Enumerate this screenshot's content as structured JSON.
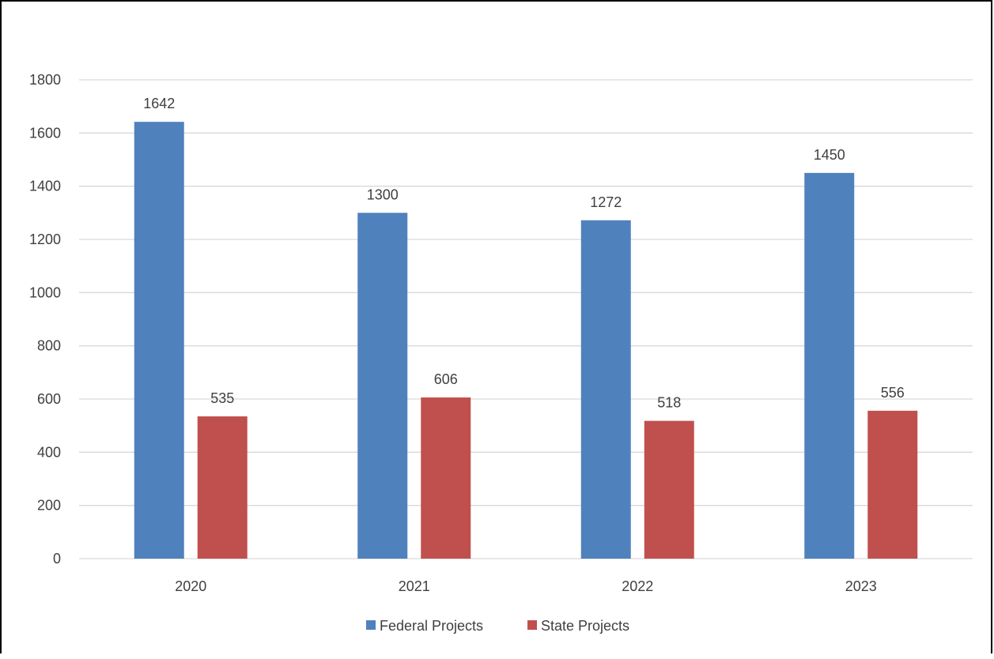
{
  "chart_data": {
    "type": "bar",
    "title": "",
    "xlabel": "",
    "ylabel": "",
    "categories": [
      "2020",
      "2021",
      "2022",
      "2023"
    ],
    "series": [
      {
        "name": "Federal Projects",
        "values": [
          1642,
          1300,
          1272,
          1450
        ],
        "color": "#4F81BD"
      },
      {
        "name": "State Projects",
        "values": [
          535,
          606,
          518,
          556
        ],
        "color": "#C0504D"
      }
    ],
    "ylim": [
      0,
      1800
    ],
    "yticks": [
      0,
      200,
      400,
      600,
      800,
      1000,
      1200,
      1400,
      1600,
      1800
    ],
    "data_labels": true,
    "grid": true,
    "legend_position": "bottom",
    "gridline_color": "#D9D9D9",
    "text_color": "#404040"
  }
}
